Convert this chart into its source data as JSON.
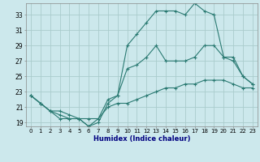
{
  "xlabel": "Humidex (Indice chaleur)",
  "bg_color": "#cce8ec",
  "grid_color": "#aacccc",
  "line_color": "#2a7a72",
  "xlim": [
    -0.5,
    23.5
  ],
  "ylim": [
    18.5,
    34.5
  ],
  "xticks": [
    0,
    1,
    2,
    3,
    4,
    5,
    6,
    7,
    8,
    9,
    10,
    11,
    12,
    13,
    14,
    15,
    16,
    17,
    18,
    19,
    20,
    21,
    22,
    23
  ],
  "yticks": [
    19,
    21,
    23,
    25,
    27,
    29,
    31,
    33
  ],
  "line1_x": [
    0,
    1,
    2,
    3,
    4,
    5,
    6,
    7,
    8,
    9,
    10,
    11,
    12,
    13,
    14,
    15,
    16,
    17,
    18,
    19,
    20,
    21,
    22,
    23
  ],
  "line1_y": [
    22.5,
    21.5,
    20.5,
    20.0,
    19.5,
    19.5,
    18.5,
    19.5,
    21.0,
    21.5,
    21.5,
    22.0,
    22.5,
    23.0,
    23.5,
    23.5,
    24.0,
    24.0,
    24.5,
    24.5,
    24.5,
    24.0,
    23.5,
    23.5
  ],
  "line2_x": [
    0,
    1,
    2,
    3,
    4,
    5,
    6,
    7,
    8,
    9,
    10,
    11,
    12,
    13,
    14,
    15,
    16,
    17,
    18,
    19,
    20,
    21,
    22,
    23
  ],
  "line2_y": [
    22.5,
    21.5,
    20.5,
    19.5,
    19.5,
    19.5,
    18.5,
    19.0,
    21.5,
    22.5,
    29.0,
    30.5,
    32.0,
    33.5,
    33.5,
    33.5,
    33.0,
    34.5,
    33.5,
    33.0,
    27.5,
    27.5,
    25.0,
    24.0
  ],
  "line3_x": [
    0,
    1,
    2,
    3,
    4,
    5,
    6,
    7,
    8,
    9,
    10,
    11,
    12,
    13,
    14,
    15,
    16,
    17,
    18,
    19,
    20,
    21,
    22,
    23
  ],
  "line3_y": [
    22.5,
    21.5,
    20.5,
    20.5,
    20.0,
    19.5,
    19.5,
    19.5,
    22.0,
    22.5,
    26.0,
    26.5,
    27.5,
    29.0,
    27.0,
    27.0,
    27.0,
    27.5,
    29.0,
    29.0,
    27.5,
    27.0,
    25.0,
    24.0
  ]
}
